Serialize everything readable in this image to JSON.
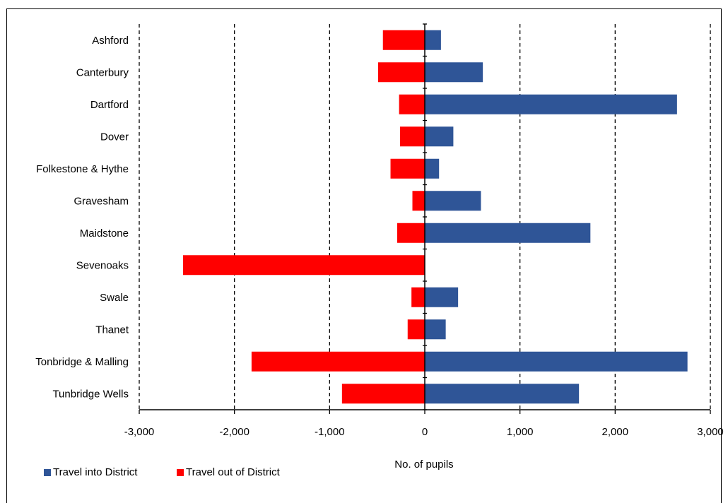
{
  "chart_data": {
    "type": "bar",
    "orientation": "horizontal",
    "title": "",
    "title_fragment": "(                           )",
    "xlabel": "No. of pupils",
    "ylabel": "",
    "xlim": [
      -3000,
      3000
    ],
    "x_ticks": [
      -3000,
      -2000,
      -1000,
      0,
      1000,
      2000,
      3000
    ],
    "x_tick_labels": [
      "-3,000",
      "-2,000",
      "-1,000",
      "0",
      "1,000",
      "2,000",
      "3,000"
    ],
    "grid": "vertical dashed",
    "legend_position": "bottom-left",
    "categories": [
      "Ashford",
      "Canterbury",
      "Dartford",
      "Dover",
      "Folkestone & Hythe",
      "Gravesham",
      "Maidstone",
      "Sevenoaks",
      "Swale",
      "Thanet",
      "Tonbridge & Malling",
      "Tunbridge Wells"
    ],
    "series": [
      {
        "name": "Travel into District",
        "color": "#2f5597",
        "values": [
          170,
          610,
          2650,
          300,
          150,
          590,
          1740,
          0,
          350,
          220,
          2760,
          1620
        ]
      },
      {
        "name": "Travel out of District",
        "color": "#ff0000",
        "values": [
          -440,
          -490,
          -270,
          -260,
          -360,
          -130,
          -290,
          -2540,
          -140,
          -180,
          -1820,
          -870
        ]
      }
    ]
  }
}
